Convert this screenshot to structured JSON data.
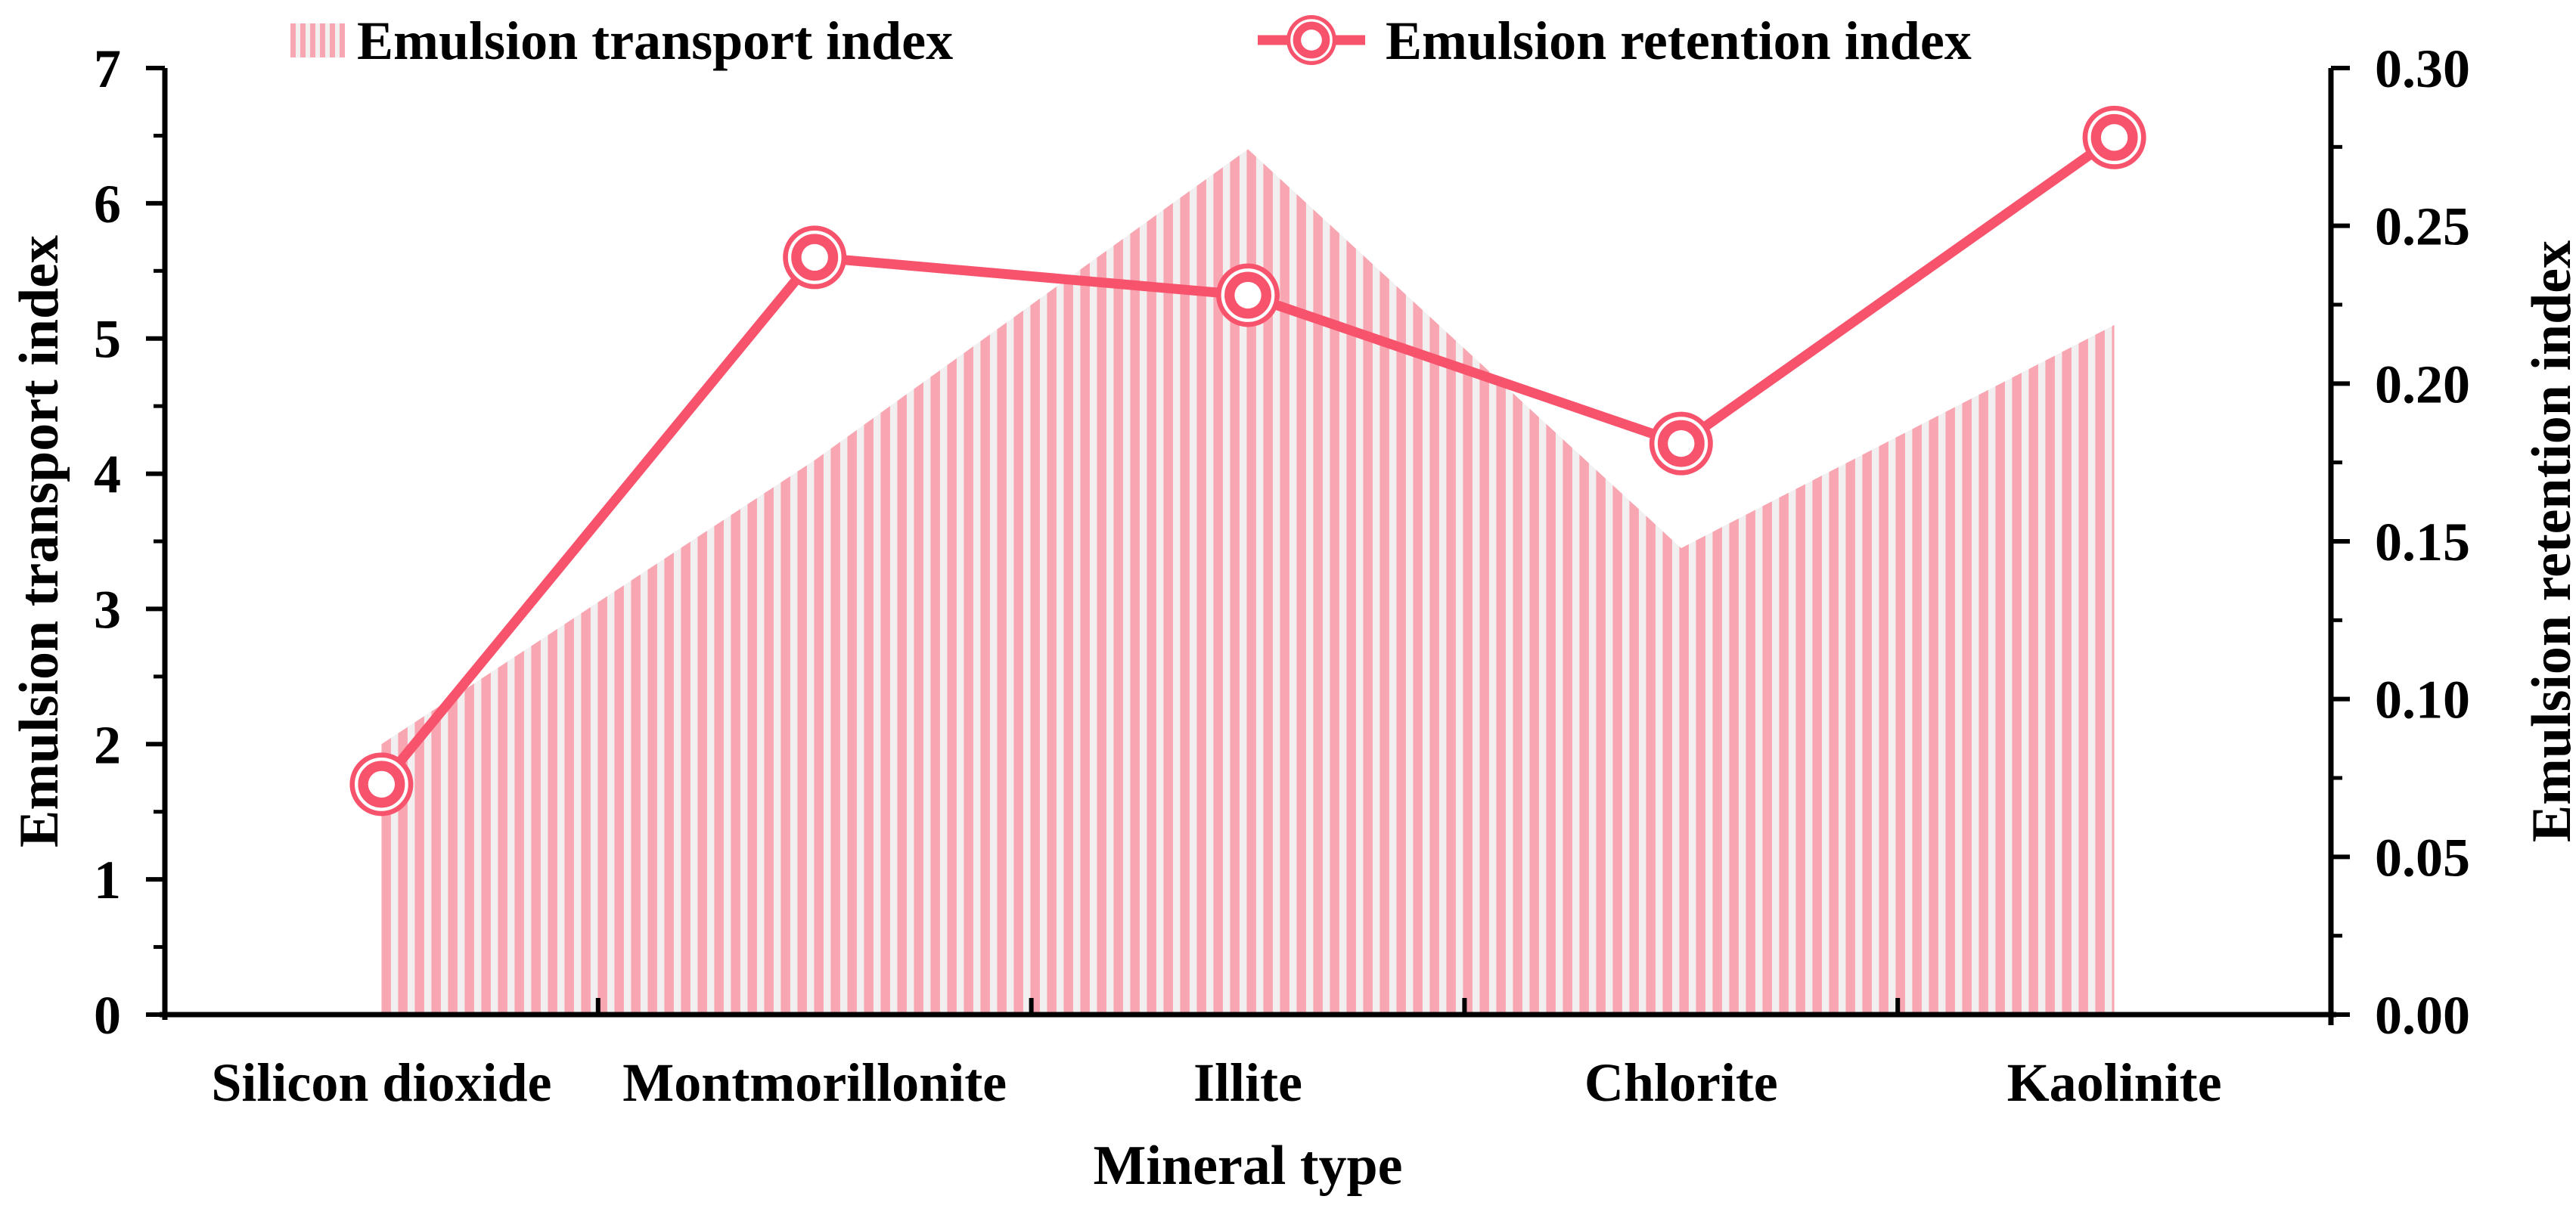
{
  "chart_data": {
    "type": "combo",
    "title": "",
    "categories": [
      "Silicon dioxide",
      "Montmorillonite",
      "Illite",
      "Chlorite",
      "Kaolinite"
    ],
    "series": [
      {
        "name": "Emulsion transport index",
        "type": "area",
        "style": "vertical-hatched-area",
        "axis": "left",
        "values": [
          2.0,
          4.1,
          6.4,
          3.45,
          5.1
        ]
      },
      {
        "name": "Emulsion retention index",
        "type": "line",
        "style": "thick-line-double-circle-markers",
        "axis": "right",
        "values": [
          0.073,
          0.24,
          0.228,
          0.181,
          0.278
        ]
      }
    ],
    "xlabel": "Mineral type",
    "ylabel_left": "Emulsion transport index",
    "ylabel_right": "Emulsion retention index",
    "left_axis": {
      "min": 0,
      "max": 7,
      "major_step": 1,
      "minor_step": 0.5,
      "tick_labels": [
        "0",
        "1",
        "2",
        "3",
        "4",
        "5",
        "6",
        "7"
      ]
    },
    "right_axis": {
      "min": 0,
      "max": 0.3,
      "major_step": 0.05,
      "minor_step": 0.025,
      "tick_labels": [
        "0.00",
        "0.05",
        "0.10",
        "0.15",
        "0.20",
        "0.25",
        "0.30"
      ]
    },
    "legend": {
      "position": "top",
      "items": [
        {
          "label": "Emulsion transport index",
          "swatch": "hatched-rect"
        },
        {
          "label": "Emulsion retention index",
          "swatch": "line-with-marker"
        }
      ]
    },
    "colors": {
      "line": "#F8536C",
      "hatch_pink": "#F9A6B3",
      "hatch_bg": "#F1EFEF",
      "axis": "#000000",
      "background": "#FFFFFF"
    },
    "grid": false
  }
}
